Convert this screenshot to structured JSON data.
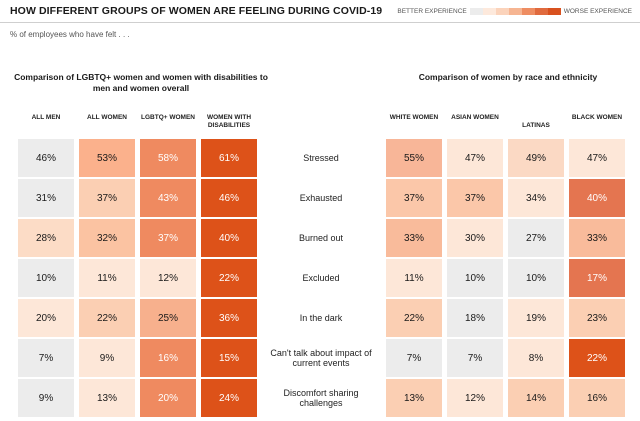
{
  "header": {
    "title": "HOW DIFFERENT GROUPS OF WOMEN ARE FEELING DURING COVID-19",
    "subtitle": "% of employees who have felt . . ."
  },
  "legend": {
    "better_label": "BETTER EXPERIENCE",
    "worse_label": "WORSE EXPERIENCE",
    "scale_colors": [
      "#ececec",
      "#fde9dc",
      "#fbd3bb",
      "#f6b592",
      "#ee8d62",
      "#e06a3e",
      "#d8511f"
    ]
  },
  "chart_data": {
    "type": "table",
    "title": "HOW DIFFERENT GROUPS OF WOMEN ARE FEELING DURING COVID-19",
    "unit": "%",
    "rows": [
      "Stressed",
      "Exhausted",
      "Burned out",
      "Excluded",
      "In the dark",
      "Can't talk about impact of current events",
      "Discomfort sharing challenges"
    ],
    "groups": [
      {
        "title": "Comparison of LGBTQ+ women and women with disabilities to men and women overall",
        "columns": [
          {
            "name": "ALL MEN",
            "values": [
              46,
              31,
              28,
              10,
              20,
              7,
              9
            ]
          },
          {
            "name": "ALL WOMEN",
            "values": [
              53,
              37,
              32,
              11,
              22,
              9,
              13
            ]
          },
          {
            "name": "LGBTQ+ WOMEN",
            "values": [
              58,
              43,
              37,
              12,
              25,
              16,
              20
            ]
          },
          {
            "name": "WOMEN WITH DISABILITIES",
            "values": [
              61,
              46,
              40,
              22,
              36,
              15,
              24
            ]
          }
        ],
        "colors": [
          [
            "#ececec",
            "#fbb18c",
            "#ef8a60",
            "#dd5219"
          ],
          [
            "#ececec",
            "#fbcfb3",
            "#ef8a60",
            "#dd5219"
          ],
          [
            "#fcdcc6",
            "#fbc3a2",
            "#ef8a60",
            "#dd5219"
          ],
          [
            "#ececec",
            "#fde7d8",
            "#fde7d8",
            "#dd5219"
          ],
          [
            "#fde7d8",
            "#fbcfb3",
            "#f7b08d",
            "#dd5219"
          ],
          [
            "#ececec",
            "#fde7d8",
            "#ef8a60",
            "#dd5219"
          ],
          [
            "#ececec",
            "#fde7d8",
            "#ef8a60",
            "#dd5219"
          ]
        ]
      },
      {
        "title": "Comparison of women by race and ethnicity",
        "columns": [
          {
            "name": "WHITE WOMEN",
            "values": [
              55,
              37,
              33,
              11,
              22,
              7,
              13
            ]
          },
          {
            "name": "ASIAN WOMEN",
            "values": [
              47,
              37,
              30,
              10,
              18,
              7,
              12
            ]
          },
          {
            "name": "LATINAS",
            "values": [
              49,
              34,
              27,
              10,
              19,
              8,
              14
            ]
          },
          {
            "name": "BLACK WOMEN",
            "values": [
              47,
              40,
              33,
              17,
              23,
              22,
              16
            ]
          }
        ],
        "colors": [
          [
            "#f8b698",
            "#fde7d8",
            "#fbd9c4",
            "#fde7d8"
          ],
          [
            "#fbc7a9",
            "#fbc7a9",
            "#fde7d8",
            "#e47550"
          ],
          [
            "#f9bb9b",
            "#fde7d8",
            "#ececec",
            "#f9bb9b"
          ],
          [
            "#fde7d8",
            "#ececec",
            "#ececec",
            "#e47550"
          ],
          [
            "#fbcfb3",
            "#ececec",
            "#fde7d8",
            "#fbcfb3"
          ],
          [
            "#ececec",
            "#ececec",
            "#fde7d8",
            "#dd5219"
          ],
          [
            "#fbcfb3",
            "#fde7d8",
            "#fbcfb3",
            "#fbcfb3"
          ]
        ]
      }
    ]
  }
}
